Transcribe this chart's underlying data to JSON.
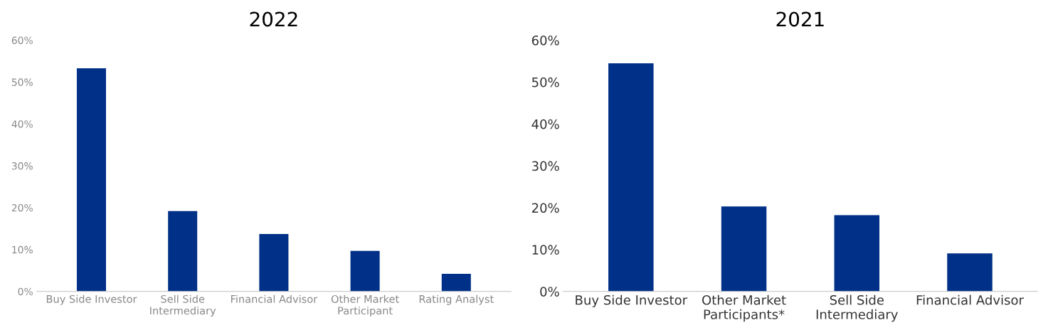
{
  "chart_data": [
    {
      "type": "bar",
      "title": "2022",
      "categories": [
        "Buy Side Investor",
        "Sell Side\nIntermediary",
        "Financial Advisor",
        "Other Market\nParticipant",
        "Rating Analyst"
      ],
      "values": [
        53.3,
        19.2,
        13.7,
        9.7,
        4.2
      ],
      "color": "#003087",
      "ylim": [
        0,
        60
      ],
      "yticks": [
        {
          "value": 0,
          "label": "0%"
        },
        {
          "value": 10,
          "label": "10%"
        },
        {
          "value": 20,
          "label": "20%"
        },
        {
          "value": 30,
          "label": "30%"
        },
        {
          "value": 40,
          "label": "40%"
        },
        {
          "value": 50,
          "label": "50%"
        },
        {
          "value": 60,
          "label": "60%"
        }
      ],
      "grid": false
    },
    {
      "type": "bar",
      "title": "2021",
      "categories": [
        "Buy Side Investor",
        "Other Market\nParticipants*",
        "Sell Side\nIntermediary",
        "Financial Advisor"
      ],
      "values": [
        54.5,
        20.3,
        18.2,
        9.1
      ],
      "color": "#003087",
      "ylim": [
        0,
        60
      ],
      "yticks": [
        {
          "value": 0,
          "label": "0%"
        },
        {
          "value": 10,
          "label": "10%"
        },
        {
          "value": 20,
          "label": "20%"
        },
        {
          "value": 30,
          "label": "30%"
        },
        {
          "value": 40,
          "label": "40%"
        },
        {
          "value": 50,
          "label": "50%"
        },
        {
          "value": 60,
          "label": "60%"
        }
      ],
      "grid": false
    }
  ]
}
